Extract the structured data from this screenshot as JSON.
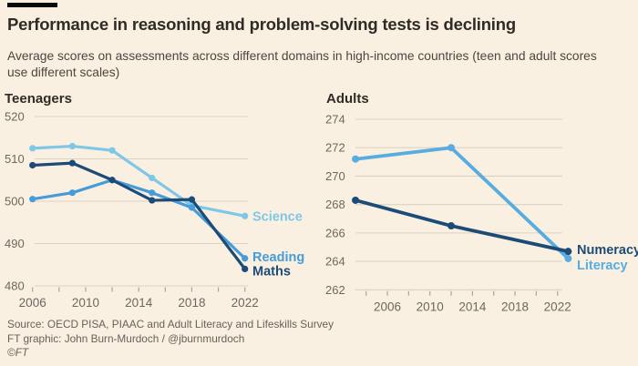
{
  "header": {
    "title": "Performance in reasoning and problem-solving tests is declining",
    "subtitle": "Average scores on assessments across different domains in high-income countries (teen and adult scores use different scales)"
  },
  "footer": {
    "source": "Source: OECD PISA, PIAAC and Adult Literacy and Lifeskills Survey",
    "credit": "FT graphic: John Burn-Murdoch / @jburnmurdoch",
    "copyright": "©FT"
  },
  "colors": {
    "background": "#FAF0E1",
    "accent_bar": "#0A0A0A",
    "grid": "#DCD2C3",
    "tick": "#ADA497",
    "tick_label": "#6E6760",
    "title": "#2F2B26",
    "subtitle": "#4C4640",
    "footer": "#68615A",
    "science": "#7FC7E7",
    "reading": "#469CD8",
    "maths": "#1D4B77",
    "literacy": "#58ACE0",
    "numeracy": "#1D4B77"
  },
  "chart_data": [
    {
      "type": "line",
      "title": "Teenagers",
      "xlabel": "",
      "ylabel": "",
      "x": [
        2006,
        2009,
        2012,
        2015,
        2018,
        2022
      ],
      "series": [
        {
          "name": "Science",
          "color": "#7FC7E7",
          "values": [
            512.5,
            513,
            512,
            505.5,
            499,
            496.5
          ],
          "label_dy": 0
        },
        {
          "name": "Reading",
          "color": "#469CD8",
          "values": [
            500.5,
            502,
            505,
            502,
            498.5,
            486.5
          ],
          "label_dy": -2
        },
        {
          "name": "Maths",
          "color": "#1D4B77",
          "values": [
            508.5,
            509,
            505,
            500.2,
            500.4,
            484
          ],
          "label_dy": 2
        }
      ],
      "ylim": [
        480,
        520
      ],
      "yticks": [
        480,
        490,
        500,
        510,
        520
      ],
      "xlim": [
        2006,
        2022
      ],
      "xticks_minor": [
        2006,
        2008,
        2010,
        2012,
        2014,
        2016,
        2018,
        2020,
        2022
      ],
      "xticks_labeled": [
        2006,
        2010,
        2014,
        2018,
        2022
      ],
      "grid": true,
      "legend_position": "end-of-line-labels"
    },
    {
      "type": "line",
      "title": "Adults",
      "xlabel": "",
      "ylabel": "",
      "x": [
        2003,
        2012,
        2023
      ],
      "series": [
        {
          "name": "Literacy",
          "color": "#58ACE0",
          "values": [
            271.2,
            272,
            264.2
          ],
          "label_dy": 7
        },
        {
          "name": "Numeracy",
          "color": "#1D4B77",
          "values": [
            268.3,
            266.5,
            264.7
          ],
          "label_dy": -2
        }
      ],
      "ylim": [
        262,
        274
      ],
      "yticks": [
        262,
        264,
        266,
        268,
        270,
        272,
        274
      ],
      "xlim": [
        2003,
        2023
      ],
      "xticks_minor": [
        2004,
        2006,
        2008,
        2010,
        2012,
        2014,
        2016,
        2018,
        2020,
        2022
      ],
      "xticks_labeled": [
        2006,
        2010,
        2014,
        2018,
        2022
      ],
      "grid": true,
      "legend_position": "end-of-line-labels"
    }
  ]
}
